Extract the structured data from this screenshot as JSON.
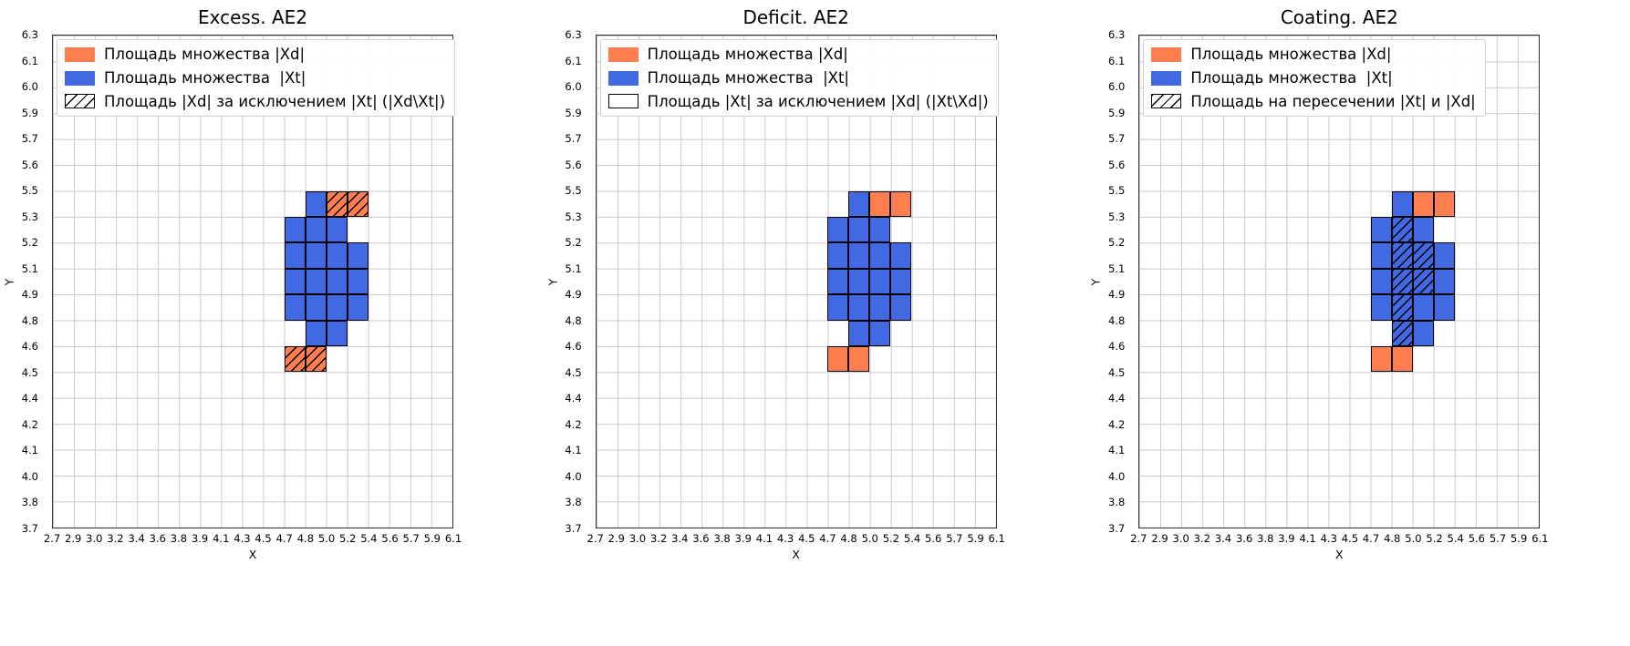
{
  "figure": {
    "background": "#ffffff",
    "colors": {
      "xd": "#ff7f50",
      "xt": "#4169e1",
      "grid": "#c9c9c9",
      "cell_border": "#000000",
      "spine": "#333333",
      "legend_border": "#cfcfcf"
    }
  },
  "chart_data": [
    {
      "type": "heatmap",
      "title": "Excess. AE2",
      "xlabel": "X",
      "ylabel": "Y",
      "x_range": [
        2.7,
        6.1
      ],
      "y_range": [
        3.7,
        6.3
      ],
      "grid": true,
      "legend_position": "upper left",
      "x_ticks": [
        2.7,
        2.9,
        3.0,
        3.2,
        3.4,
        3.6,
        3.8,
        3.9,
        4.1,
        4.3,
        4.5,
        4.7,
        4.8,
        5.0,
        5.2,
        5.4,
        5.6,
        5.7,
        5.9,
        6.1
      ],
      "y_ticks": [
        6.3,
        6.1,
        6.0,
        5.9,
        5.7,
        5.6,
        5.5,
        5.3,
        5.2,
        5.1,
        4.9,
        4.8,
        4.6,
        4.5,
        4.4,
        4.2,
        4.1,
        4.0,
        3.8,
        3.7
      ],
      "legend": [
        {
          "swatch": "xd",
          "label": "Площадь множества |Xd|"
        },
        {
          "swatch": "xt",
          "label": "Площадь множества  |Xt|"
        },
        {
          "swatch": "hatch",
          "label": "Площадь |Xd| за исключением |Xt| (|Xd\\Xt|)"
        }
      ],
      "cells": {
        "xt": [
          [
            4.8,
            5.0,
            5.3,
            5.5
          ],
          [
            4.7,
            4.8,
            5.2,
            5.3
          ],
          [
            4.8,
            5.0,
            5.2,
            5.3
          ],
          [
            5.0,
            5.2,
            5.2,
            5.3
          ],
          [
            4.7,
            4.8,
            5.1,
            5.2
          ],
          [
            4.8,
            5.0,
            5.1,
            5.2
          ],
          [
            5.0,
            5.2,
            5.1,
            5.2
          ],
          [
            5.2,
            5.4,
            5.1,
            5.2
          ],
          [
            4.7,
            4.8,
            4.9,
            5.1
          ],
          [
            4.8,
            5.0,
            4.9,
            5.1
          ],
          [
            5.0,
            5.2,
            4.9,
            5.1
          ],
          [
            5.2,
            5.4,
            4.9,
            5.1
          ],
          [
            4.7,
            4.8,
            4.8,
            4.9
          ],
          [
            4.8,
            5.0,
            4.8,
            4.9
          ],
          [
            5.0,
            5.2,
            4.8,
            4.9
          ],
          [
            5.2,
            5.4,
            4.8,
            4.9
          ],
          [
            4.8,
            5.0,
            4.6,
            4.8
          ],
          [
            5.0,
            5.2,
            4.6,
            4.8
          ]
        ],
        "xd": [
          [
            5.0,
            5.2,
            5.3,
            5.5
          ],
          [
            5.2,
            5.4,
            5.3,
            5.5
          ],
          [
            4.7,
            4.8,
            4.5,
            4.6
          ],
          [
            4.8,
            5.0,
            4.5,
            4.6
          ]
        ],
        "hatched": [
          [
            5.0,
            5.2,
            5.3,
            5.5
          ],
          [
            5.2,
            5.4,
            5.3,
            5.5
          ],
          [
            4.7,
            4.8,
            4.5,
            4.6
          ],
          [
            4.8,
            5.0,
            4.5,
            4.6
          ]
        ]
      }
    },
    {
      "type": "heatmap",
      "title": "Deficit. AE2",
      "xlabel": "X",
      "ylabel": "Y",
      "x_range": [
        2.7,
        6.1
      ],
      "y_range": [
        3.7,
        6.3
      ],
      "grid": true,
      "legend_position": "upper left",
      "x_ticks": [
        2.7,
        2.9,
        3.0,
        3.2,
        3.4,
        3.6,
        3.8,
        3.9,
        4.1,
        4.3,
        4.5,
        4.7,
        4.8,
        5.0,
        5.2,
        5.4,
        5.6,
        5.7,
        5.9,
        6.1
      ],
      "y_ticks": [
        6.3,
        6.1,
        6.0,
        5.9,
        5.7,
        5.6,
        5.5,
        5.3,
        5.2,
        5.1,
        4.9,
        4.8,
        4.6,
        4.5,
        4.4,
        4.2,
        4.1,
        4.0,
        3.8,
        3.7
      ],
      "legend": [
        {
          "swatch": "xd",
          "label": "Площадь множества |Xd|"
        },
        {
          "swatch": "xt",
          "label": "Площадь множества  |Xt|"
        },
        {
          "swatch": "empty",
          "label": "Площадь |Xt| за исключением |Xd| (|Xt\\Xd|)"
        }
      ],
      "cells": {
        "xt": [
          [
            4.8,
            5.0,
            5.3,
            5.5
          ],
          [
            4.7,
            4.8,
            5.2,
            5.3
          ],
          [
            4.8,
            5.0,
            5.2,
            5.3
          ],
          [
            5.0,
            5.2,
            5.2,
            5.3
          ],
          [
            4.7,
            4.8,
            5.1,
            5.2
          ],
          [
            4.8,
            5.0,
            5.1,
            5.2
          ],
          [
            5.0,
            5.2,
            5.1,
            5.2
          ],
          [
            5.2,
            5.4,
            5.1,
            5.2
          ],
          [
            4.7,
            4.8,
            4.9,
            5.1
          ],
          [
            4.8,
            5.0,
            4.9,
            5.1
          ],
          [
            5.0,
            5.2,
            4.9,
            5.1
          ],
          [
            5.2,
            5.4,
            4.9,
            5.1
          ],
          [
            4.7,
            4.8,
            4.8,
            4.9
          ],
          [
            4.8,
            5.0,
            4.8,
            4.9
          ],
          [
            5.0,
            5.2,
            4.8,
            4.9
          ],
          [
            5.2,
            5.4,
            4.8,
            4.9
          ],
          [
            4.8,
            5.0,
            4.6,
            4.8
          ],
          [
            5.0,
            5.2,
            4.6,
            4.8
          ]
        ],
        "xd": [
          [
            5.0,
            5.2,
            5.3,
            5.5
          ],
          [
            5.2,
            5.4,
            5.3,
            5.5
          ],
          [
            4.7,
            4.8,
            4.5,
            4.6
          ],
          [
            4.8,
            5.0,
            4.5,
            4.6
          ]
        ],
        "hatched": []
      }
    },
    {
      "type": "heatmap",
      "title": "Coating. AE2",
      "xlabel": "X",
      "ylabel": "Y",
      "x_range": [
        2.7,
        6.1
      ],
      "y_range": [
        3.7,
        6.3
      ],
      "grid": true,
      "legend_position": "upper left",
      "x_ticks": [
        2.7,
        2.9,
        3.0,
        3.2,
        3.4,
        3.6,
        3.8,
        3.9,
        4.1,
        4.3,
        4.5,
        4.7,
        4.8,
        5.0,
        5.2,
        5.4,
        5.6,
        5.7,
        5.9,
        6.1
      ],
      "y_ticks": [
        6.3,
        6.1,
        6.0,
        5.9,
        5.7,
        5.6,
        5.5,
        5.3,
        5.2,
        5.1,
        4.9,
        4.8,
        4.6,
        4.5,
        4.4,
        4.2,
        4.1,
        4.0,
        3.8,
        3.7
      ],
      "legend": [
        {
          "swatch": "xd",
          "label": "Площадь множества |Xd|"
        },
        {
          "swatch": "xt",
          "label": "Площадь множества  |Xt|"
        },
        {
          "swatch": "hatch",
          "label": "Площадь на пересечении |Xt| и |Xd|"
        }
      ],
      "cells": {
        "xt": [
          [
            4.8,
            5.0,
            5.3,
            5.5
          ],
          [
            4.7,
            4.8,
            5.2,
            5.3
          ],
          [
            4.8,
            5.0,
            5.2,
            5.3
          ],
          [
            5.0,
            5.2,
            5.2,
            5.3
          ],
          [
            4.7,
            4.8,
            5.1,
            5.2
          ],
          [
            4.8,
            5.0,
            5.1,
            5.2
          ],
          [
            5.0,
            5.2,
            5.1,
            5.2
          ],
          [
            5.2,
            5.4,
            5.1,
            5.2
          ],
          [
            4.7,
            4.8,
            4.9,
            5.1
          ],
          [
            4.8,
            5.0,
            4.9,
            5.1
          ],
          [
            5.0,
            5.2,
            4.9,
            5.1
          ],
          [
            5.2,
            5.4,
            4.9,
            5.1
          ],
          [
            4.7,
            4.8,
            4.8,
            4.9
          ],
          [
            4.8,
            5.0,
            4.8,
            4.9
          ],
          [
            5.0,
            5.2,
            4.8,
            4.9
          ],
          [
            5.2,
            5.4,
            4.8,
            4.9
          ],
          [
            4.8,
            5.0,
            4.6,
            4.8
          ],
          [
            5.0,
            5.2,
            4.6,
            4.8
          ]
        ],
        "xd": [
          [
            5.0,
            5.2,
            5.3,
            5.5
          ],
          [
            5.2,
            5.4,
            5.3,
            5.5
          ],
          [
            4.7,
            4.8,
            4.5,
            4.6
          ],
          [
            4.8,
            5.0,
            4.5,
            4.6
          ]
        ],
        "hatched": [
          [
            4.8,
            5.0,
            5.2,
            5.3
          ],
          [
            4.8,
            5.0,
            5.1,
            5.2
          ],
          [
            5.0,
            5.2,
            5.1,
            5.2
          ],
          [
            4.8,
            5.0,
            4.9,
            5.1
          ],
          [
            5.0,
            5.2,
            4.9,
            5.1
          ],
          [
            4.8,
            5.0,
            4.8,
            4.9
          ],
          [
            4.8,
            5.0,
            4.6,
            4.8
          ]
        ]
      }
    }
  ]
}
